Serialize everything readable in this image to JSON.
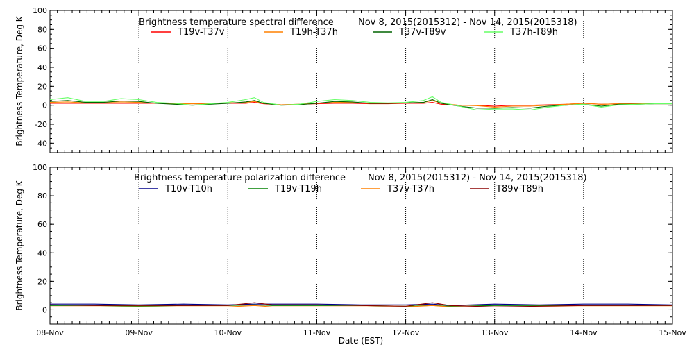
{
  "chart_data": [
    {
      "type": "line",
      "title": "Brightness temperature spectral difference",
      "date_range": "Nov  8, 2015(2015312) - Nov 14, 2015(2015318)",
      "ylabel": "Brightness Temperature, Deg K",
      "xlabel": "",
      "ylim": [
        -50,
        100
      ],
      "yticks": [
        -40,
        -20,
        0,
        20,
        40,
        60,
        80,
        100
      ],
      "xlim": [
        0,
        7
      ],
      "grid": "vertical dotted at day boundaries",
      "legend_position": "top",
      "series": [
        {
          "name": "T19v-T37v",
          "color": "#ff0000",
          "x": [
            0,
            0.2,
            0.4,
            0.6,
            0.8,
            1.0,
            1.2,
            1.4,
            1.6,
            1.8,
            2.0,
            2.2,
            2.3,
            2.4,
            2.6,
            2.8,
            3.0,
            3.2,
            3.4,
            3.6,
            3.8,
            4.0,
            4.2,
            4.3,
            4.4,
            4.6,
            4.8,
            5.0,
            5.2,
            5.4,
            5.6,
            5.8,
            6.0,
            6.2,
            6.4,
            6.6,
            6.8,
            7.0
          ],
          "y": [
            2,
            2,
            2,
            2,
            2,
            2,
            2,
            2,
            1.5,
            1.5,
            2,
            2,
            3,
            1.5,
            0.5,
            1,
            1.5,
            2,
            2,
            1.5,
            1.5,
            2,
            2,
            3,
            1,
            0,
            0,
            -1,
            0,
            0,
            0.5,
            1,
            2,
            1,
            1.5,
            1.5,
            1.5,
            1.5
          ]
        },
        {
          "name": "T19h-T37h",
          "color": "#ff8000",
          "x": [
            0,
            0.2,
            0.4,
            0.6,
            0.8,
            1.0,
            1.2,
            1.4,
            1.6,
            1.8,
            2.0,
            2.2,
            2.3,
            2.4,
            2.6,
            2.8,
            3.0,
            3.2,
            3.4,
            3.6,
            3.8,
            4.0,
            4.2,
            4.3,
            4.4,
            4.6,
            4.8,
            5.0,
            5.2,
            5.4,
            5.6,
            5.8,
            6.0,
            6.2,
            6.4,
            6.6,
            6.8,
            7.0
          ],
          "y": [
            3,
            3.5,
            2.5,
            3,
            3.5,
            3,
            2,
            1.5,
            1.5,
            2,
            2.5,
            3,
            4,
            2,
            0.5,
            1,
            2,
            3,
            3,
            2,
            2,
            2.5,
            3,
            5,
            2,
            0,
            -0.5,
            -2,
            -1,
            -1,
            0,
            1,
            2,
            1,
            1.5,
            2,
            2,
            2
          ]
        },
        {
          "name": "T37v-T89v",
          "color": "#006400",
          "x": [
            0,
            0.2,
            0.4,
            0.6,
            0.8,
            1.0,
            1.2,
            1.4,
            1.6,
            1.8,
            2.0,
            2.2,
            2.3,
            2.4,
            2.6,
            2.8,
            3.0,
            3.2,
            3.4,
            3.6,
            3.8,
            4.0,
            4.2,
            4.3,
            4.4,
            4.6,
            4.8,
            5.0,
            5.2,
            5.4,
            5.6,
            5.8,
            6.0,
            6.2,
            6.4,
            6.6,
            6.8,
            7.0
          ],
          "y": [
            4,
            5,
            3,
            3,
            4.5,
            4,
            2,
            1,
            0,
            1,
            2,
            3.5,
            5,
            2,
            0,
            0.5,
            2,
            4,
            3.5,
            2,
            2,
            2.5,
            3,
            6,
            2,
            -1,
            -3,
            -3,
            -2.5,
            -3,
            -1,
            0,
            1,
            -1,
            1,
            1,
            1.5,
            1.5
          ]
        },
        {
          "name": "T37h-T89h",
          "color": "#66ff66",
          "x": [
            0,
            0.2,
            0.4,
            0.6,
            0.8,
            1.0,
            1.2,
            1.4,
            1.6,
            1.8,
            2.0,
            2.2,
            2.3,
            2.4,
            2.6,
            2.8,
            3.0,
            3.2,
            3.4,
            3.6,
            3.8,
            4.0,
            4.2,
            4.3,
            4.4,
            4.6,
            4.8,
            5.0,
            5.2,
            5.4,
            5.6,
            5.8,
            6.0,
            6.2,
            6.4,
            6.6,
            6.8,
            7.0
          ],
          "y": [
            6,
            8,
            4,
            4,
            7,
            6,
            3,
            2,
            0,
            1.5,
            3,
            6,
            8,
            3,
            0,
            1,
            4,
            6,
            5,
            3,
            2.5,
            3,
            5,
            9,
            3,
            -1,
            -5,
            -4,
            -4,
            -5,
            -2,
            0,
            1,
            -2,
            0.5,
            1,
            1.5,
            1.5
          ]
        }
      ]
    },
    {
      "type": "line",
      "title": "Brightness temperature polarization difference",
      "date_range": "Nov  8, 2015(2015312) - Nov 14, 2015(2015318)",
      "ylabel": "Brightness Temperature, Deg K",
      "xlabel": "Date (EST)",
      "ylim": [
        -10,
        100
      ],
      "yticks": [
        0,
        20,
        40,
        60,
        80,
        100
      ],
      "xlim": [
        0,
        7
      ],
      "xticks": [
        "08-Nov",
        "09-Nov",
        "10-Nov",
        "11-Nov",
        "12-Nov",
        "13-Nov",
        "14-Nov",
        "15-Nov"
      ],
      "grid": "vertical dotted at day boundaries",
      "legend_position": "top",
      "series": [
        {
          "name": "T10v-T10h",
          "color": "#00008b",
          "x": [
            0,
            0.5,
            1.0,
            1.5,
            2.0,
            2.3,
            2.5,
            3.0,
            3.5,
            4.0,
            4.3,
            4.5,
            5.0,
            5.5,
            6.0,
            6.5,
            7.0
          ],
          "y": [
            4,
            4,
            3.5,
            4,
            3.5,
            4,
            4,
            4,
            3.5,
            3.5,
            4,
            3,
            4,
            3.5,
            4,
            4,
            3.5
          ]
        },
        {
          "name": "T19v-T19h",
          "color": "#008000",
          "x": [
            0,
            0.5,
            1.0,
            1.5,
            2.0,
            2.3,
            2.5,
            3.0,
            3.5,
            4.0,
            4.3,
            4.5,
            5.0,
            5.5,
            6.0,
            6.5,
            7.0
          ],
          "y": [
            3,
            3,
            2.5,
            3,
            3,
            3.5,
            3,
            3,
            3,
            2.5,
            3,
            2.5,
            3,
            3,
            3,
            3,
            3
          ]
        },
        {
          "name": "T37v-T37h",
          "color": "#ff8000",
          "x": [
            0,
            0.5,
            1.0,
            1.5,
            2.0,
            2.3,
            2.5,
            3.0,
            3.5,
            4.0,
            4.3,
            4.5,
            5.0,
            5.5,
            6.0,
            6.5,
            7.0
          ],
          "y": [
            2,
            2,
            2,
            2,
            2,
            3,
            2,
            2,
            2,
            2,
            3,
            2,
            2,
            2,
            2,
            2,
            2
          ]
        },
        {
          "name": "T89v-T89h",
          "color": "#8b0000",
          "x": [
            0,
            0.5,
            1.0,
            1.5,
            2.0,
            2.3,
            2.5,
            3.0,
            3.5,
            4.0,
            4.3,
            4.5,
            5.0,
            5.5,
            6.0,
            6.5,
            7.0
          ],
          "y": [
            3.5,
            3,
            3,
            3,
            3,
            5,
            3.5,
            3.5,
            3,
            2.5,
            5,
            3,
            2,
            2.5,
            3,
            3,
            3
          ]
        }
      ]
    }
  ]
}
